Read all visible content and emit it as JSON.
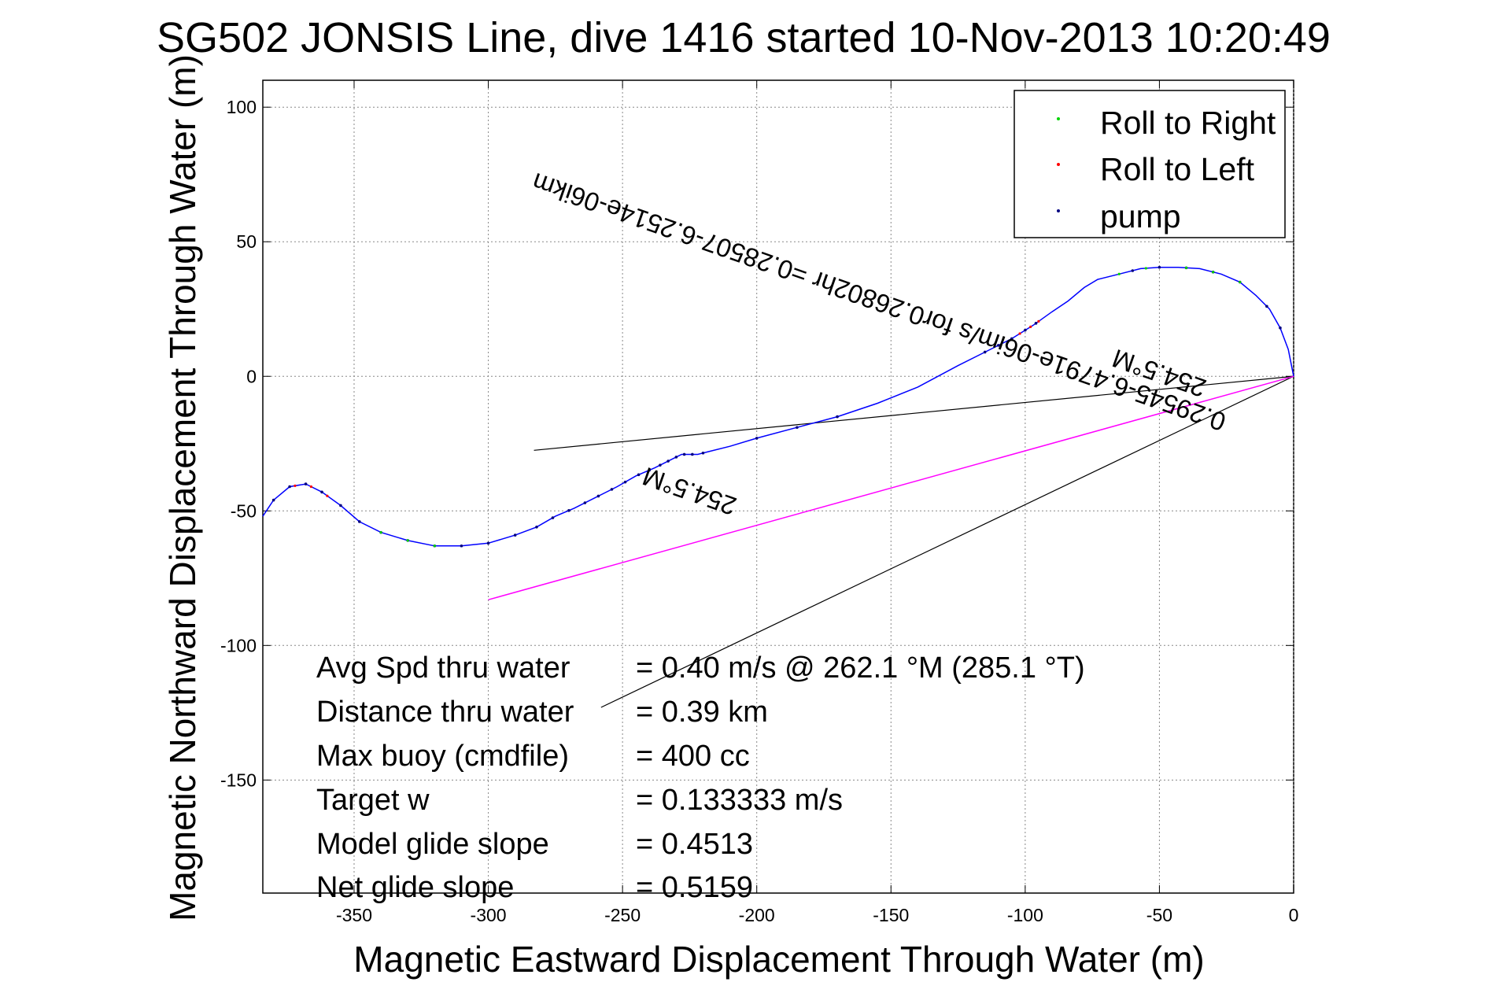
{
  "chart_data": {
    "type": "line",
    "title": "SG502 JONSIS Line, dive 1416 started 10-Nov-2013 10:20:49",
    "xlabel": "Magnetic Eastward Displacement Through Water (m)",
    "ylabel": "Magnetic Northward Displacement Through Water (m)",
    "xlim": [
      -384,
      0
    ],
    "ylim": [
      -192,
      110
    ],
    "xticks": [
      -350,
      -300,
      -250,
      -200,
      -150,
      -100,
      -50,
      0
    ],
    "yticks": [
      100,
      50,
      0,
      -50,
      -100,
      -150
    ],
    "grid": true,
    "legend_position": "top-right",
    "legend": [
      {
        "label": "Roll to Right",
        "color": "#00d400"
      },
      {
        "label": "Roll to Left",
        "color": "#ff0000"
      },
      {
        "label": "pump",
        "color": "#000080"
      }
    ],
    "series": [
      {
        "name": "track",
        "color": "#0000ff",
        "x": [
          0,
          -2,
          -5,
          -9,
          -14,
          -20,
          -27,
          -35,
          -43,
          -50,
          -57,
          -65,
          -73,
          -78,
          -84,
          -90,
          -97,
          -105,
          -115,
          -125,
          -140,
          -155,
          -170,
          -185,
          -200,
          -210,
          -218,
          -222,
          -225,
          -228,
          -232,
          -238,
          -245,
          -252,
          -260,
          -268,
          -275,
          -282,
          -290,
          -300,
          -310,
          -320,
          -330,
          -340,
          -348,
          -355,
          -362,
          -368,
          -374,
          -380,
          -384
        ],
        "y": [
          0,
          10,
          18,
          25,
          30,
          35,
          38,
          40,
          40.5,
          40.5,
          40,
          38,
          36,
          33,
          28,
          24,
          19,
          14,
          9,
          4,
          -4,
          -10,
          -15,
          -19,
          -23,
          -26,
          -28,
          -29,
          -29,
          -29,
          -31,
          -34,
          -37,
          -41,
          -45,
          -49,
          -52,
          -56,
          -59,
          -62,
          -63,
          -63,
          -61,
          -58,
          -54,
          -48,
          -43,
          -40,
          -41,
          -46,
          -52
        ]
      },
      {
        "name": "magenta-line",
        "color": "#ff00ff",
        "x": [
          0,
          -300
        ],
        "y": [
          0,
          -83
        ]
      }
    ],
    "reference_lines": [
      {
        "x": [
          0,
          -283
        ],
        "y": [
          0,
          -27.5
        ]
      },
      {
        "x": [
          0,
          -258
        ],
        "y": [
          0,
          -123
        ]
      }
    ],
    "pump_markers_x": [
      -220,
      -224,
      -227,
      -230,
      -233,
      -236,
      -240,
      -244,
      -249,
      -254,
      -259,
      -264,
      -270,
      -276,
      -282,
      -290,
      -300,
      -310,
      -320,
      -330,
      -340,
      -348,
      -355,
      -362,
      -368,
      -374,
      -380,
      -115,
      -110,
      -105,
      -100,
      -96,
      -200,
      -185,
      -170,
      -60,
      -50,
      -40,
      -30,
      -20,
      -10,
      -5
    ]
  },
  "annotations": {
    "upper_rotated": "0.29545-6.4791e-06im/s for0.26802hr =0.28507-6.2514e-06ikm",
    "upper_heading": "254.5°M",
    "lower_heading": "254.5°M"
  },
  "stats": [
    {
      "label": "Avg Spd thru water",
      "value": "=  0.40 m/s @ 262.1 °M (285.1 °T)"
    },
    {
      "label": "Distance thru water",
      "value": "=  0.39 km"
    },
    {
      "label": "Max buoy (cmdfile)",
      "value": "= 400 cc"
    },
    {
      "label": "Target w",
      "value": "= 0.133333 m/s"
    },
    {
      "label": "Model glide slope",
      "value": "= 0.4513"
    },
    {
      "label": "Net glide slope",
      "value": "= 0.5159"
    }
  ]
}
